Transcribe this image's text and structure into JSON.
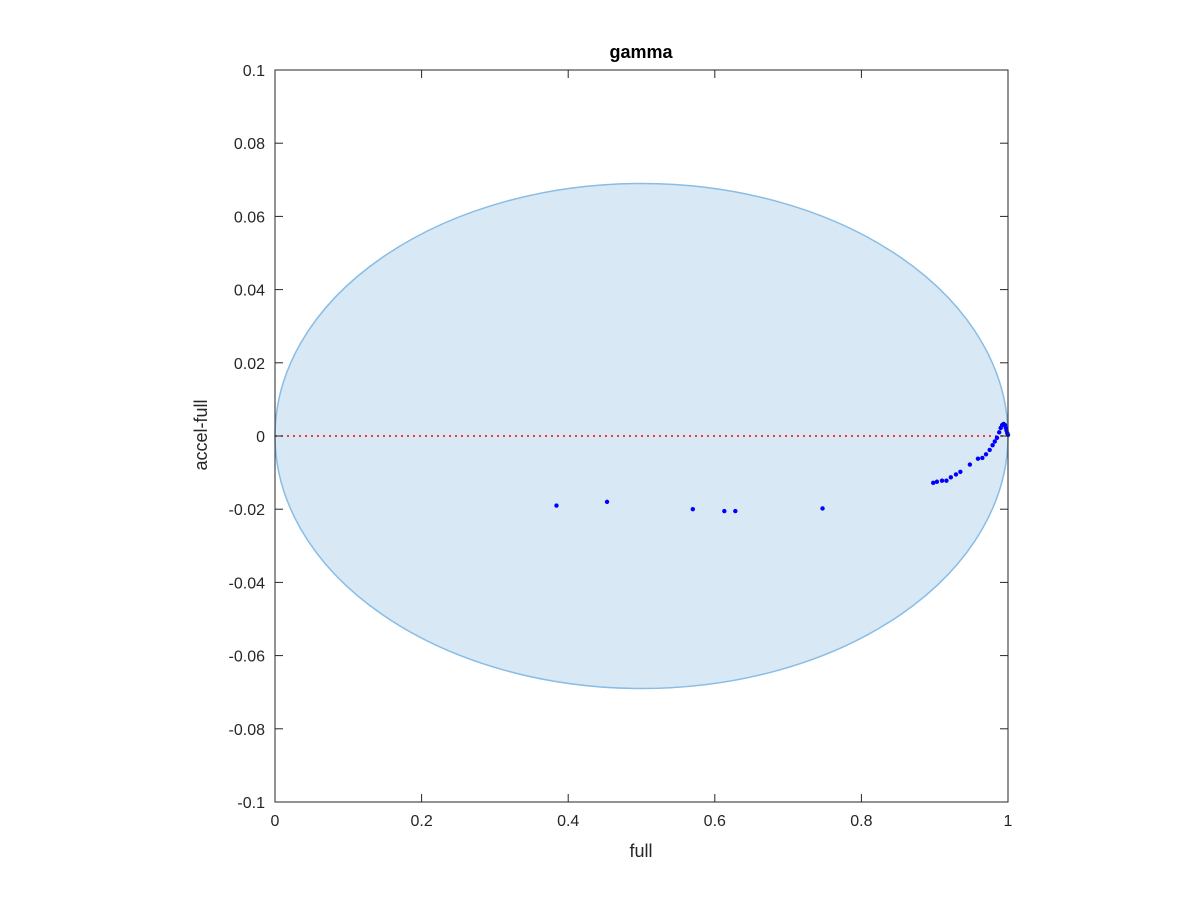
{
  "chart_data": {
    "type": "scatter",
    "title": "gamma",
    "xlabel": "full",
    "ylabel": "accel-full",
    "xlim": [
      0,
      1
    ],
    "ylim": [
      -0.1,
      0.1
    ],
    "xticks": [
      0,
      0.2,
      0.4,
      0.6,
      0.8,
      1
    ],
    "xtick_labels": [
      "0",
      "0.2",
      "0.4",
      "0.6",
      "0.8",
      "1"
    ],
    "yticks": [
      -0.1,
      -0.08,
      -0.06,
      -0.04,
      -0.02,
      0,
      0.02,
      0.04,
      0.06,
      0.08,
      0.1
    ],
    "ytick_labels": [
      "-0.1",
      "-0.08",
      "-0.06",
      "-0.04",
      "-0.02",
      "0",
      "0.02",
      "0.04",
      "0.06",
      "0.08",
      "0.1"
    ],
    "grid": false,
    "reference_line": {
      "y": 0,
      "style": "dotted",
      "color": "#ff0000"
    },
    "region": {
      "shape": "ellipse",
      "center_x": 0.5,
      "center_y": 0,
      "radius_x": 0.5,
      "radius_y": 0.069,
      "fill": "#d9e8f5",
      "stroke": "#88bde6"
    },
    "series": [
      {
        "color": "#0000ff",
        "x": [
          0.384,
          0.453,
          0.57,
          0.613,
          0.628,
          0.747,
          0.898,
          0.903,
          0.91,
          0.916,
          0.922,
          0.929,
          0.935,
          0.948,
          0.959,
          0.965,
          0.97,
          0.975,
          0.979,
          0.982,
          0.985,
          0.988,
          0.99,
          0.992,
          0.994,
          0.996,
          0.997,
          0.998,
          0.999,
          1.0
        ],
        "y": [
          -0.019,
          -0.018,
          -0.02,
          -0.0205,
          -0.0205,
          -0.0198,
          -0.0128,
          -0.0125,
          -0.0122,
          -0.0122,
          -0.0113,
          -0.0105,
          -0.0098,
          -0.0078,
          -0.0062,
          -0.006,
          -0.005,
          -0.0038,
          -0.0025,
          -0.0015,
          -0.0005,
          0.001,
          0.0022,
          0.003,
          0.0033,
          0.003,
          0.0022,
          0.0015,
          0.0008,
          0.0003
        ]
      }
    ]
  }
}
